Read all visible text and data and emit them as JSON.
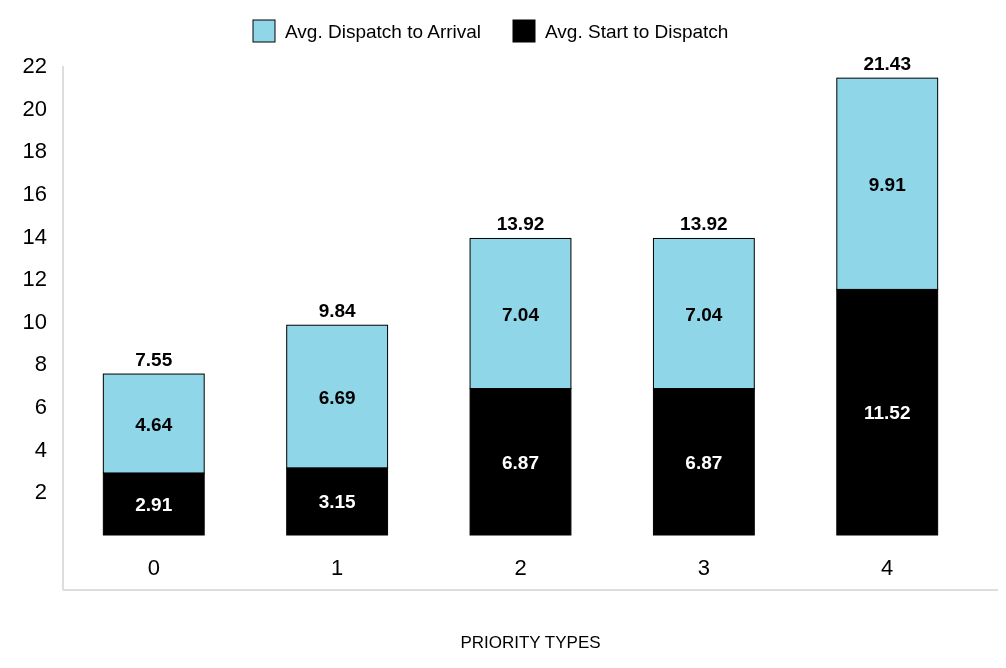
{
  "chart_data": {
    "type": "bar",
    "stacked": true,
    "xlabel": "PRIORITY TYPES",
    "categories": [
      "0",
      "1",
      "2",
      "3",
      "4"
    ],
    "series": [
      {
        "name": "Avg. Start to Dispatch",
        "color": "#000000",
        "values": [
          2.91,
          3.15,
          6.87,
          6.87,
          11.52
        ]
      },
      {
        "name": "Avg. Dispatch to Arrival",
        "color": "#8fd6e8",
        "values": [
          4.64,
          6.69,
          7.04,
          7.04,
          9.91
        ]
      }
    ],
    "totals": [
      "7.55",
      "9.84",
      "13.92",
      "13.92",
      "21.43"
    ],
    "data_labels": true,
    "ylim": [
      0,
      22
    ],
    "yticks": [
      2,
      4,
      6,
      8,
      10,
      12,
      14,
      16,
      18,
      20,
      22
    ],
    "grid": false,
    "legend": "top"
  }
}
